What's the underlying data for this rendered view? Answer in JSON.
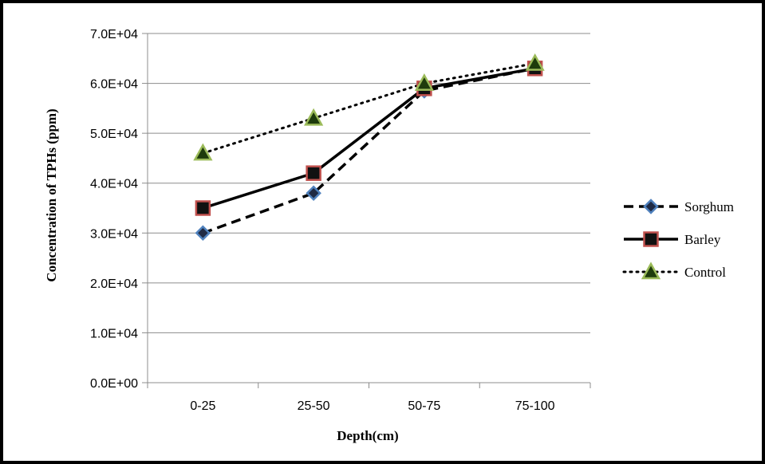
{
  "chart_data": {
    "type": "line",
    "xlabel": "Depth(cm)",
    "ylabel": "Concentration of TPHs (ppm)",
    "categories": [
      "0-25",
      "25-50",
      "50-75",
      "75-100"
    ],
    "ylim": [
      0,
      70000
    ],
    "yticks": [
      0,
      10000,
      20000,
      30000,
      40000,
      50000,
      60000,
      70000
    ],
    "ytick_labels": [
      "0.0E+00",
      "1.0E+04",
      "2.0E+04",
      "3.0E+04",
      "4.0E+04",
      "5.0E+04",
      "6.0E+04",
      "7.0E+04"
    ],
    "grid": "horizontal",
    "legend_position": "right",
    "series": [
      {
        "name": "Sorghum",
        "values": [
          30000,
          38000,
          58500,
          63000
        ],
        "line_style": "dashed",
        "marker": "diamond",
        "marker_fill": "#1f2a44",
        "marker_edge": "#4f81bd"
      },
      {
        "name": "Barley",
        "values": [
          35000,
          42000,
          59000,
          63000
        ],
        "line_style": "solid",
        "marker": "square",
        "marker_fill": "#111111",
        "marker_edge": "#c0504d"
      },
      {
        "name": "Control",
        "values": [
          46000,
          53000,
          60000,
          64000
        ],
        "line_style": "dotted",
        "marker": "triangle",
        "marker_fill": "#1e3b0c",
        "marker_edge": "#9bbb59"
      }
    ]
  }
}
